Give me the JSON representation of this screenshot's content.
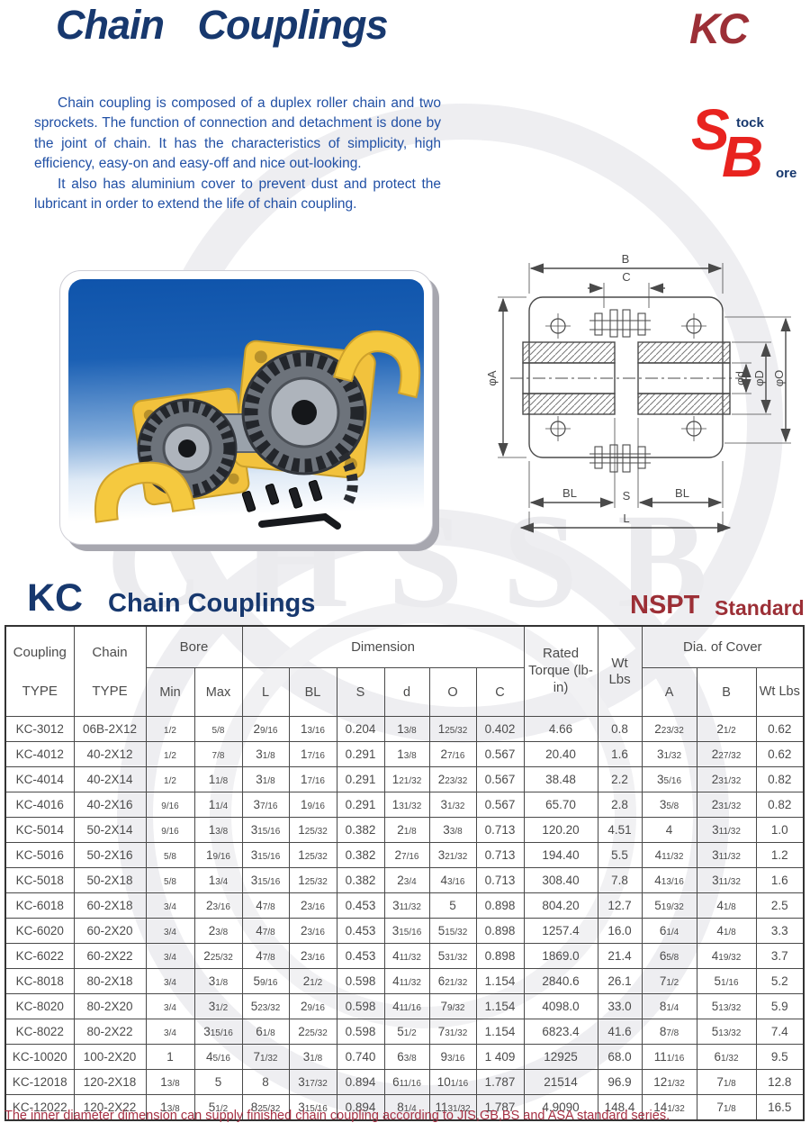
{
  "colors": {
    "navy": "#17386e",
    "maroon": "#9c2f36",
    "body_blue": "#2150a5",
    "logo_red": "#e8231f",
    "footer_red": "#a63144",
    "table_text": "#4b4b4b",
    "watermark": "#ebebee",
    "photo_blue_top": "#0f54ab",
    "cover_yellow": "#f2c23d"
  },
  "header": {
    "title": "Chain  Couplings",
    "series_code": "KC"
  },
  "intro": {
    "para1": "Chain coupling is composed of a duplex roller chain and two sprockets. The function of connection and detachment is done by the joint of chain. It has the characteristics of simplicity, high efficiency, easy-on and easy-off and nice out-looking.",
    "para2": "It also has aluminium cover to prevent dust and protect the lubricant in order to extend the life of chain coupling."
  },
  "stock_bore_logo": {
    "s": "S",
    "tock": "tock",
    "b": "B",
    "ore": "ore"
  },
  "watermark": "CHSSB",
  "diagram": {
    "dim_b": "B",
    "dim_c": "C",
    "dim_phi_a": "φA",
    "dim_phi_d": "φd",
    "dim_phi_D": "φD",
    "dim_phi_o": "φO",
    "dim_bl_left": "BL",
    "dim_s": "S",
    "dim_l": "L",
    "dim_bl_right": "BL"
  },
  "section": {
    "code": "KC",
    "title": "Chain Couplings",
    "standard_code": "NSPT",
    "standard_label": "Standard"
  },
  "table": {
    "header": {
      "col_coupling": [
        "Coupling",
        "TYPE"
      ],
      "col_chain": [
        "Chain",
        "TYPE"
      ],
      "group_bore": "Bore",
      "group_dimension": "Dimension",
      "col_rated": "Rated Torque (lb-in)",
      "col_wt": "Wt Lbs",
      "group_dia": "Dia. of Cover",
      "sub": [
        "Min",
        "Max",
        "L",
        "BL",
        "S",
        "d",
        "O",
        "C",
        "A",
        "B",
        "Wt Lbs"
      ]
    },
    "rows": [
      [
        "KC-3012",
        "06B-2X12",
        "1/2",
        "5/8",
        "2 9/16",
        "1 3/16",
        "0.204",
        "1 3/8",
        "1 25/32",
        "0.402",
        "4.66",
        "0.8",
        "2 23/32",
        "2 1/2",
        "0.62"
      ],
      [
        "KC-4012",
        "40-2X12",
        "1/2",
        "7/8",
        "3 1/8",
        "1 7/16",
        "0.291",
        "1 3/8",
        "2 7/16",
        "0.567",
        "20.40",
        "1.6",
        "3 1/32",
        "2 27/32",
        "0.62"
      ],
      [
        "KC-4014",
        "40-2X14",
        "1/2",
        "1 1/8",
        "3 1/8",
        "1 7/16",
        "0.291",
        "1 21/32",
        "2 23/32",
        "0.567",
        "38.48",
        "2.2",
        "3 5/16",
        "2 31/32",
        "0.82"
      ],
      [
        "KC-4016",
        "40-2X16",
        "9/16",
        "1 1/4",
        "3 7/16",
        "1 9/16",
        "0.291",
        "1 31/32",
        "3 1/32",
        "0.567",
        "65.70",
        "2.8",
        "3 5/8",
        "2 31/32",
        "0.82"
      ],
      [
        "KC-5014",
        "50-2X14",
        "9/16",
        "1 3/8",
        "3 15/16",
        "1 25/32",
        "0.382",
        "2 1/8",
        "3 3/8",
        "0.713",
        "120.20",
        "4.51",
        "4",
        "3 11/32",
        "1.0"
      ],
      [
        "KC-5016",
        "50-2X16",
        "5/8",
        "1 9/16",
        "3 15/16",
        "1 25/32",
        "0.382",
        "2 7/16",
        "3 21/32",
        "0.713",
        "194.40",
        "5.5",
        "4 11/32",
        "3 11/32",
        "1.2"
      ],
      [
        "KC-5018",
        "50-2X18",
        "5/8",
        "1 3/4",
        "3 15/16",
        "1 25/32",
        "0.382",
        "2 3/4",
        "4 3/16",
        "0.713",
        "308.40",
        "7.8",
        "4 13/16",
        "3 11/32",
        "1.6"
      ],
      [
        "KC-6018",
        "60-2X18",
        "3/4",
        "2 3/16",
        "4 7/8",
        "2 3/16",
        "0.453",
        "3 11/32",
        "5",
        "0.898",
        "804.20",
        "12.7",
        "5 19/32",
        "4 1/8",
        "2.5"
      ],
      [
        "KC-6020",
        "60-2X20",
        "3/4",
        "2 3/8",
        "4 7/8",
        "2 3/16",
        "0.453",
        "3 15/16",
        "5 15/32",
        "0.898",
        "1257.4",
        "16.0",
        "6 1/4",
        "4 1/8",
        "3.3"
      ],
      [
        "KC-6022",
        "60-2X22",
        "3/4",
        "2 25/32",
        "4 7/8",
        "2 3/16",
        "0.453",
        "4 11/32",
        "5 31/32",
        "0.898",
        "1869.0",
        "21.4",
        "6 5/8",
        "4 19/32",
        "3.7"
      ],
      [
        "KC-8018",
        "80-2X18",
        "3/4",
        "3 1/8",
        "5 9/16",
        "2 1/2",
        "0.598",
        "4 11/32",
        "6 21/32",
        "1.154",
        "2840.6",
        "26.1",
        "7 1/2",
        "5 1/16",
        "5.2"
      ],
      [
        "KC-8020",
        "80-2X20",
        "3/4",
        "3 1/2",
        "5 23/32",
        "2 9/16",
        "0.598",
        "4 11/16",
        "7 9/32",
        "1.154",
        "4098.0",
        "33.0",
        "8 1/4",
        "5 13/32",
        "5.9"
      ],
      [
        "KC-8022",
        "80-2X22",
        "3/4",
        "3 15/16",
        "6 1/8",
        "2 25/32",
        "0.598",
        "5 1/2",
        "7 31/32",
        "1.154",
        "6823.4",
        "41.6",
        "8 7/8",
        "5 13/32",
        "7.4"
      ],
      [
        "KC-10020",
        "100-2X20",
        "1",
        "4 5/16",
        "7 1/32",
        "3 1/8",
        "0.740",
        "6 3/8",
        "9 3/16",
        "1 409",
        "12925",
        "68.0",
        "11 1/16",
        "6 1/32",
        "9.5"
      ],
      [
        "KC-12018",
        "120-2X18",
        "1 3/8",
        "5",
        "8",
        "3 17/32",
        "0.894",
        "6 11/16",
        "10 1/16",
        "1.787",
        "21514",
        "96.9",
        "12 1/32",
        "7 1/8",
        "12.8"
      ],
      [
        "KC-12022",
        "120-2X22",
        "1 3/8",
        "5 1/2",
        "8 25/32",
        "3 15/16",
        "0.894",
        "8 1/4",
        "11 31/32",
        "1.787",
        "4.9090",
        "148.4",
        "14 1/32",
        "7 1/8",
        "16.5"
      ]
    ]
  },
  "footer": {
    "note": "The inner diameter dimension can supply finished chain coupling according to JIS,GB,BS and ASA standard series."
  }
}
